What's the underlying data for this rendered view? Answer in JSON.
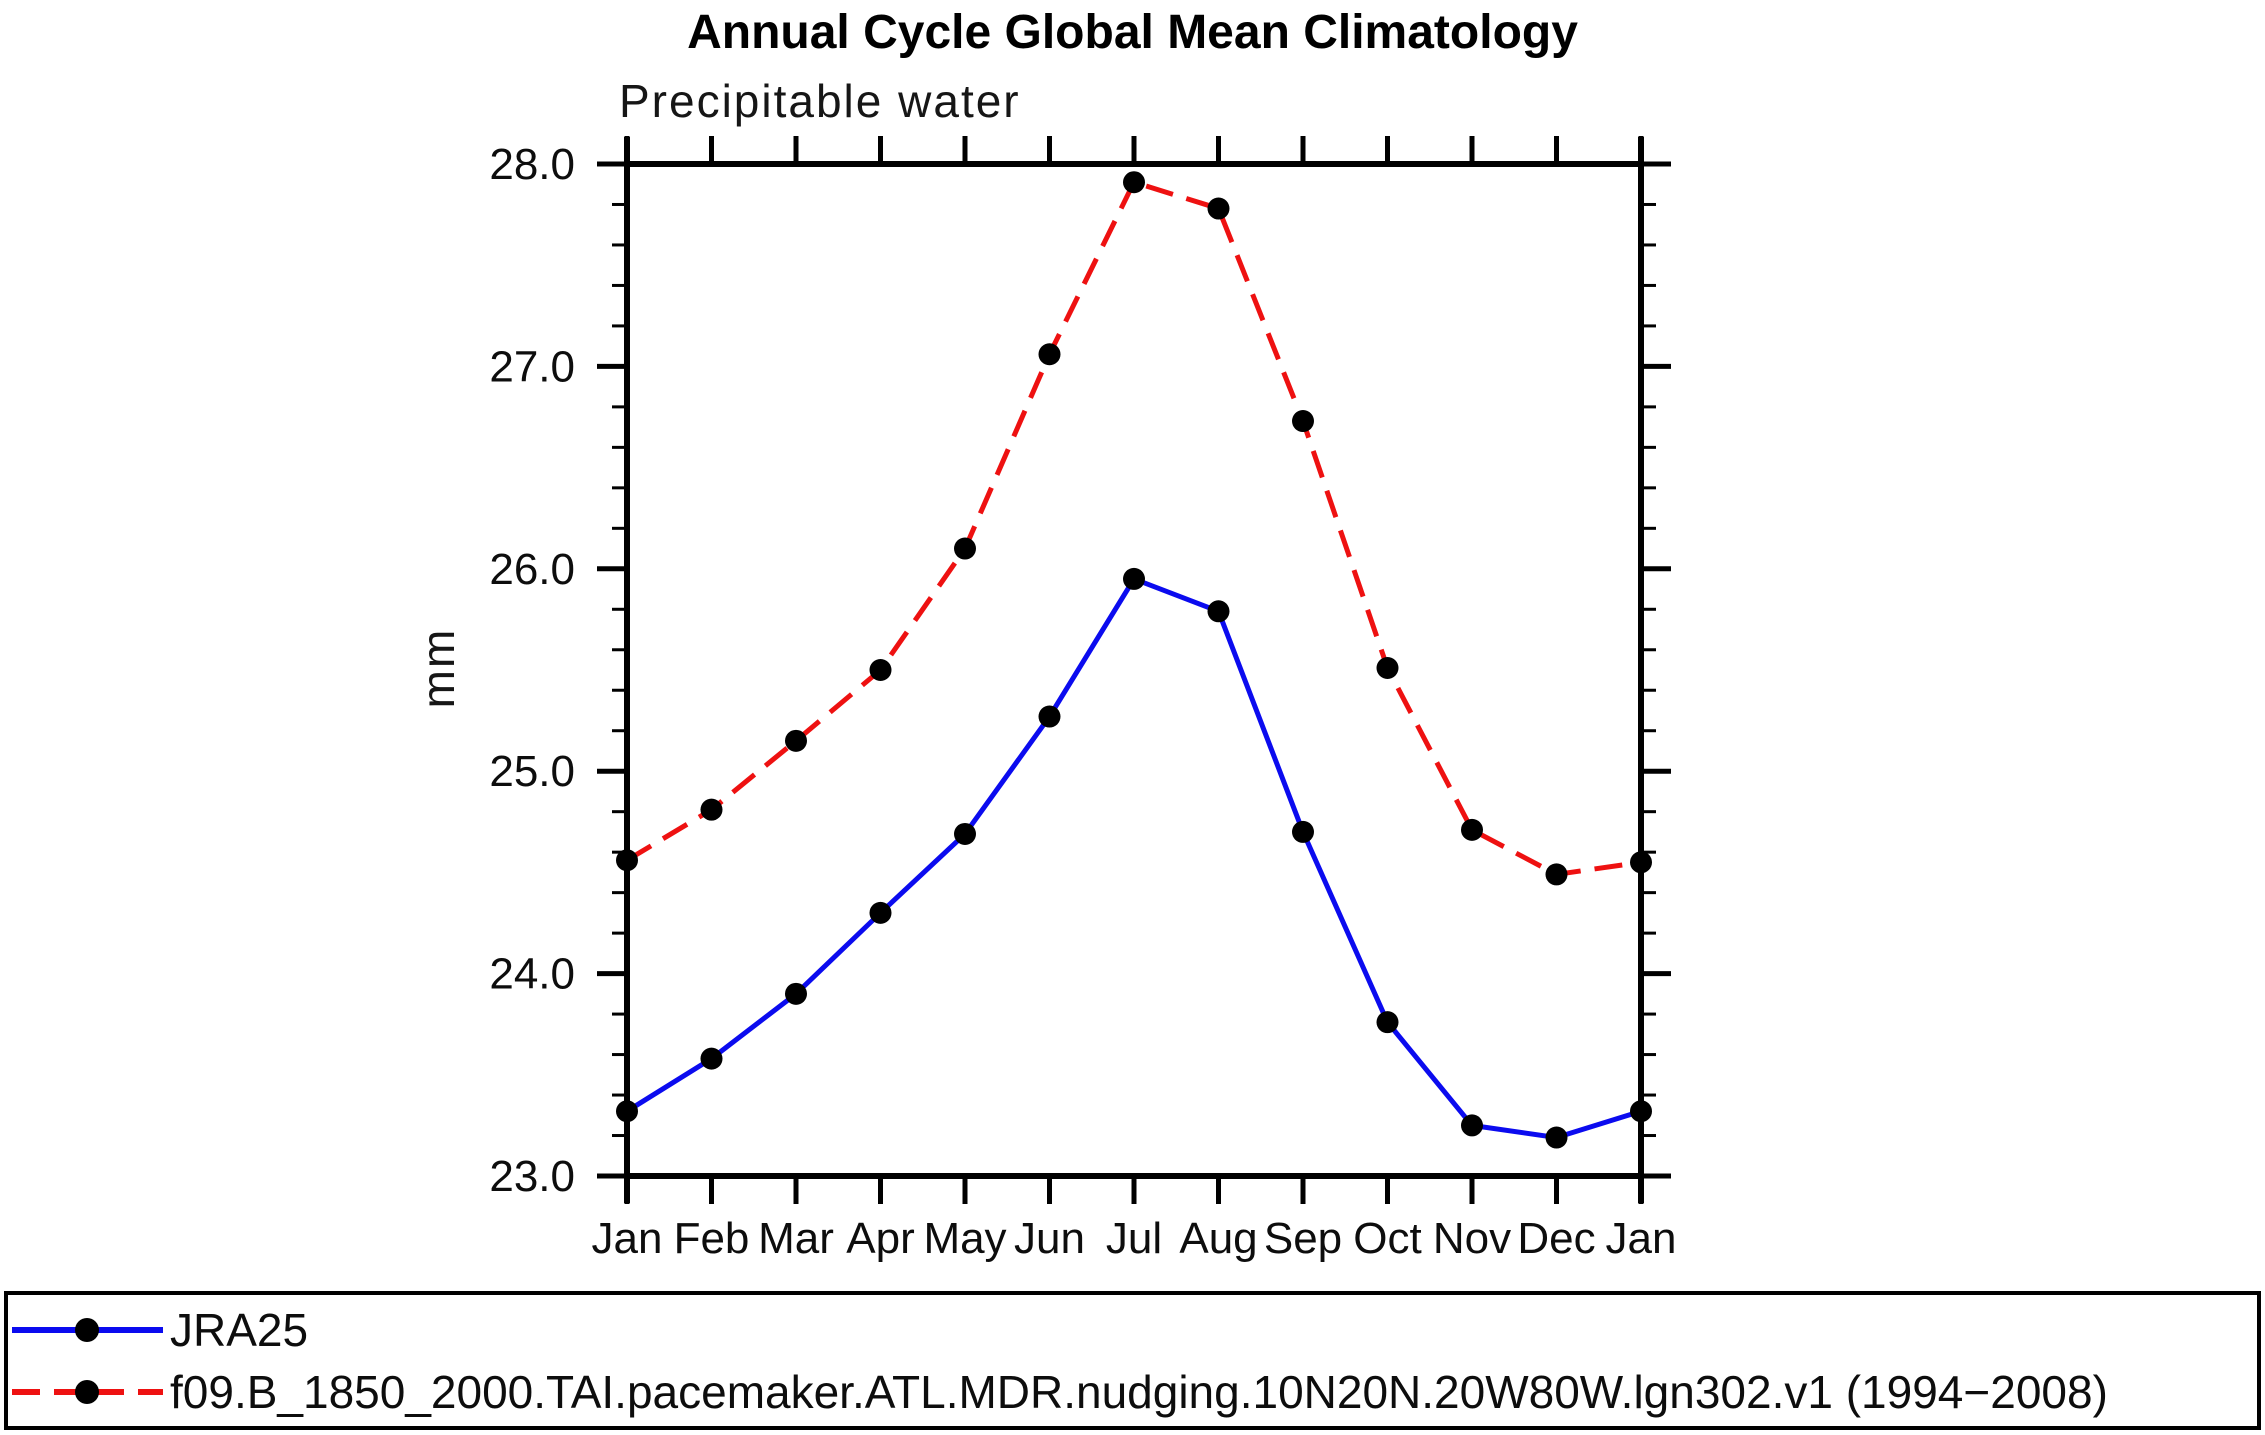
{
  "chart_data": {
    "type": "line",
    "title": "Annual Cycle Global Mean Climatology",
    "subtitle": "Precipitable water",
    "xlabel": "",
    "ylabel": "mm",
    "categories": [
      "Jan",
      "Feb",
      "Mar",
      "Apr",
      "May",
      "Jun",
      "Jul",
      "Aug",
      "Sep",
      "Oct",
      "Nov",
      "Dec",
      "Jan"
    ],
    "series": [
      {
        "name": "JRA25",
        "color": "#0b0bef",
        "line_style": "solid",
        "marker": "black-dot",
        "marker_color": "#000000",
        "values": [
          23.32,
          23.58,
          23.9,
          24.3,
          24.69,
          25.27,
          25.95,
          25.79,
          24.7,
          23.76,
          23.25,
          23.19,
          23.32
        ]
      },
      {
        "name": "f09.B_1850_2000.TAI.pacemaker.ATL.MDR.nudging.10N20N.20W80W.lgn302.v1 (1994−2008)",
        "color": "#ee1111",
        "line_style": "dashed",
        "marker": "black-dot",
        "marker_color": "#000000",
        "values": [
          24.56,
          24.81,
          25.15,
          25.5,
          26.1,
          27.06,
          27.91,
          27.78,
          26.73,
          25.51,
          24.71,
          24.49,
          24.55
        ]
      }
    ],
    "ylim": [
      23.0,
      28.0
    ],
    "y_major_step": 1.0,
    "y_minor_step": 0.2,
    "y_tick_labels": [
      "23.0",
      "24.0",
      "25.0",
      "26.0",
      "27.0",
      "28.0"
    ],
    "grid": false,
    "legend_position": "bottom-box",
    "frame_color": "#000000",
    "background_color": "#ffffff"
  }
}
